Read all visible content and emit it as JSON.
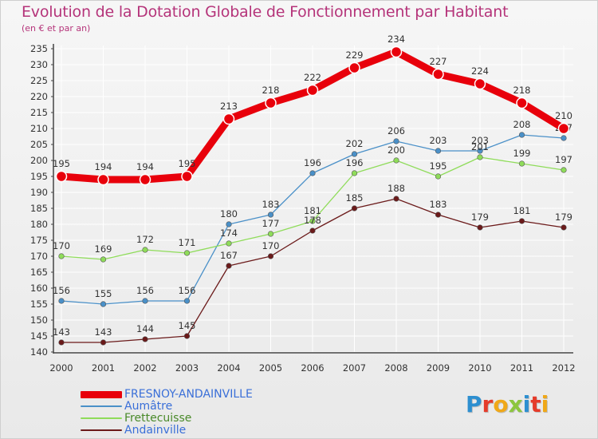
{
  "title": "Evolution de la Dotation Globale de Fonctionnement par Habitant",
  "subtitle": "(en € et par an)",
  "logo_text": "Proxiti",
  "colors": {
    "title": "#b5347a",
    "axis_text": "#333333",
    "grid": "#ffffff",
    "logo_letters": [
      "#2d8fd0",
      "#e53b2a",
      "#f0a818",
      "#8cc63e",
      "#2d8fd0",
      "#e53b2a",
      "#f0a818"
    ]
  },
  "chart_data": {
    "type": "line",
    "title": "Evolution de la Dotation Globale de Fonctionnement par Habitant",
    "subtitle": "(en € et par an)",
    "xlabel": "",
    "ylabel": "",
    "ylim": [
      140,
      235
    ],
    "ytick_step": 5,
    "grid": true,
    "legend_position": "bottom-left",
    "categories": [
      "2000",
      "2001",
      "2002",
      "2003",
      "2004",
      "2005",
      "2006",
      "2007",
      "2008",
      "2009",
      "2010",
      "2011",
      "2012"
    ],
    "series": [
      {
        "name": "FRESNOY-ANDAINVILLE",
        "color": "#e8000b",
        "emphasis": true,
        "values": [
          195,
          194,
          194,
          195,
          213,
          218,
          222,
          229,
          234,
          227,
          224,
          218,
          210
        ]
      },
      {
        "name": "Aumâtre",
        "color": "#4a90c8",
        "emphasis": false,
        "values": [
          156,
          155,
          156,
          156,
          180,
          183,
          196,
          202,
          206,
          203,
          203,
          208,
          207
        ]
      },
      {
        "name": "Frettecuisse",
        "color": "#8fdc5a",
        "emphasis": false,
        "values": [
          170,
          169,
          172,
          171,
          174,
          177,
          181,
          196,
          200,
          195,
          201,
          199,
          197
        ]
      },
      {
        "name": "Andainville",
        "color": "#6b1a1a",
        "emphasis": false,
        "values": [
          143,
          143,
          144,
          145,
          167,
          170,
          178,
          185,
          188,
          183,
          179,
          181,
          179
        ]
      }
    ]
  }
}
